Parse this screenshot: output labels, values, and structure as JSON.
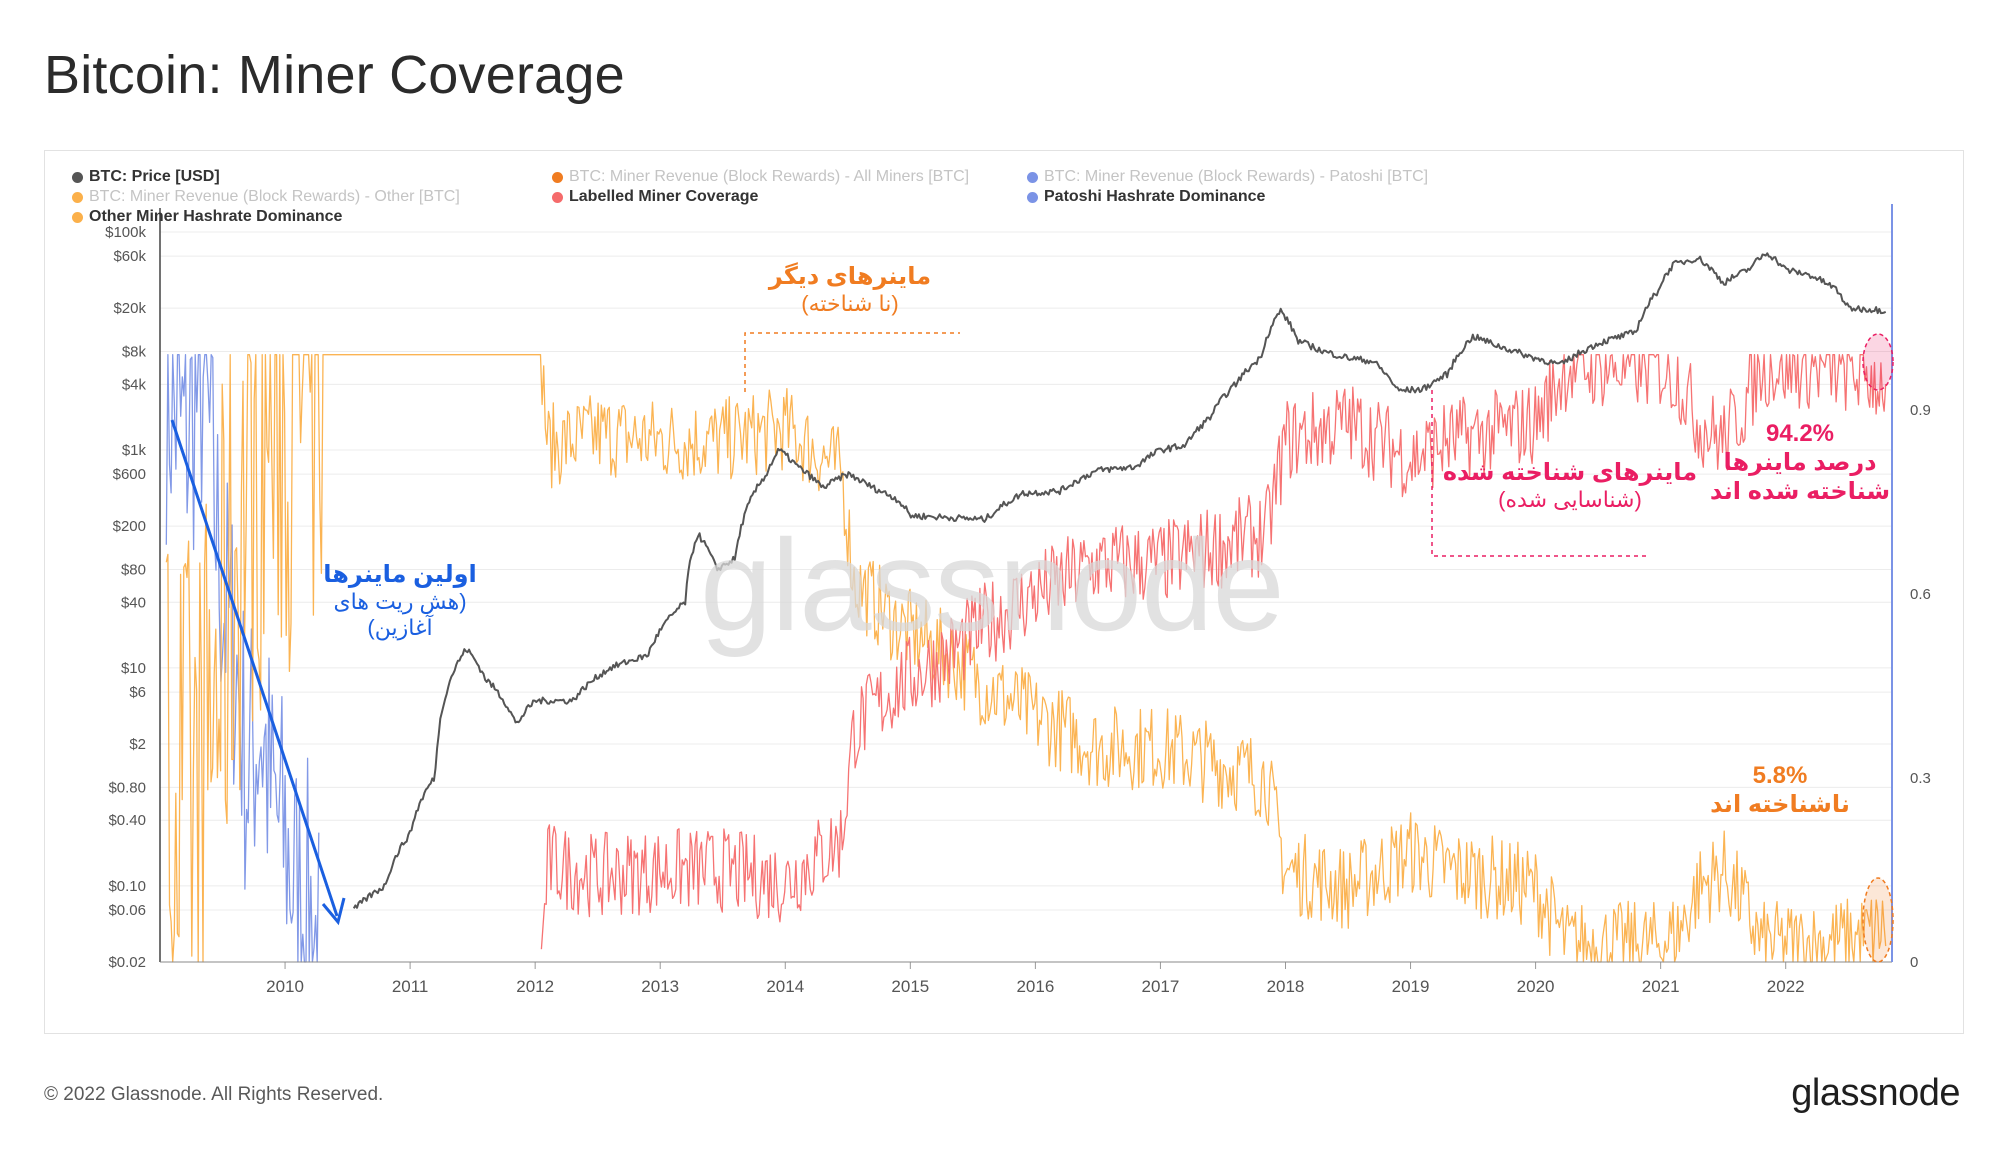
{
  "page": {
    "title": "Bitcoin: Miner Coverage",
    "copyright": "© 2022 Glassnode. All Rights Reserved.",
    "logo_text": "glassnode",
    "watermark_text": "glassnode"
  },
  "legend": [
    {
      "label": "BTC: Price [USD]",
      "color": "#555555",
      "active": true
    },
    {
      "label": "BTC: Miner Revenue (Block Rewards) - All Miners [BTC]",
      "color": "#f07c21",
      "active": false
    },
    {
      "label": "BTC: Miner Revenue (Block Rewards) - Patoshi [BTC]",
      "color": "#7b93e6",
      "active": false
    },
    {
      "label": "BTC: Miner Revenue (Block Rewards) - Other [BTC]",
      "color": "#fbb04a",
      "active": false
    },
    {
      "label": "Labelled Miner Coverage",
      "color": "#f56b6b",
      "active": true
    },
    {
      "label": "Patoshi Hashrate Dominance",
      "color": "#7b93e6",
      "active": true
    },
    {
      "label": "Other Miner Hashrate Dominance",
      "color": "#fbb04a",
      "active": true
    }
  ],
  "annotations": {
    "other_miners_title": "ماینرهای دیگر",
    "other_miners_sub": "(نا شناخته)",
    "early_miners_title": "اولین ماینرها",
    "early_miners_sub1": "(هش ریت های",
    "early_miners_sub2": "آغازین)",
    "labelled_title": "ماینرهای شناخته شده",
    "labelled_sub": "(شناسایی شده)",
    "labelled_pct": "94.2%",
    "labelled_pct_text1": "درصد ماینرها",
    "labelled_pct_text2": "شناخته شده اند",
    "unknown_pct": "5.8%",
    "unknown_pct_text": "ناشناخته اند",
    "colors": {
      "orange": "#f07c21",
      "blue": "#1a5fe0",
      "pink": "#ea1e63",
      "gray": "#888888"
    }
  },
  "chart_data": {
    "type": "line",
    "x_ticks": [
      "2010",
      "2011",
      "2012",
      "2013",
      "2014",
      "2015",
      "2016",
      "2017",
      "2018",
      "2019",
      "2020",
      "2021",
      "2022"
    ],
    "xlim": [
      2009.0,
      2022.85
    ],
    "y_left": {
      "scale": "log",
      "ticks": [
        "$100k",
        "$60k",
        "$20k",
        "$8k",
        "$4k",
        "$1k",
        "$600",
        "$200",
        "$80",
        "$40",
        "$10",
        "$6",
        "$2",
        "$0.80",
        "$0.40",
        "$0.10",
        "$0.06",
        "$0.02"
      ],
      "tick_values": [
        100000,
        60000,
        20000,
        8000,
        4000,
        1000,
        600,
        200,
        80,
        40,
        10,
        6,
        2,
        0.8,
        0.4,
        0.1,
        0.06,
        0.02
      ],
      "range": [
        0.02,
        100000
      ]
    },
    "y_right": {
      "ticks": [
        "0.9",
        "0.6",
        "0.3",
        "0"
      ],
      "tick_values": [
        0.9,
        0.6,
        0.3,
        0
      ],
      "range": [
        0,
        1.19
      ]
    },
    "series": [
      {
        "name": "BTC: Price [USD]",
        "axis": "left",
        "color": "#555555",
        "points": [
          [
            2010.55,
            0.06
          ],
          [
            2010.8,
            0.1
          ],
          [
            2011.0,
            0.3
          ],
          [
            2011.2,
            1.0
          ],
          [
            2011.45,
            15
          ],
          [
            2011.6,
            8
          ],
          [
            2011.85,
            3
          ],
          [
            2012.0,
            5
          ],
          [
            2012.3,
            5
          ],
          [
            2012.6,
            10
          ],
          [
            2012.9,
            13
          ],
          [
            2013.2,
            40
          ],
          [
            2013.3,
            170
          ],
          [
            2013.45,
            80
          ],
          [
            2013.6,
            100
          ],
          [
            2013.85,
            600
          ],
          [
            2013.95,
            1000
          ],
          [
            2014.1,
            700
          ],
          [
            2014.3,
            450
          ],
          [
            2014.5,
            600
          ],
          [
            2014.7,
            450
          ],
          [
            2014.9,
            350
          ],
          [
            2015.0,
            250
          ],
          [
            2015.3,
            240
          ],
          [
            2015.6,
            230
          ],
          [
            2015.9,
            400
          ],
          [
            2016.2,
            420
          ],
          [
            2016.5,
            650
          ],
          [
            2016.8,
            700
          ],
          [
            2017.0,
            1000
          ],
          [
            2017.2,
            1100
          ],
          [
            2017.4,
            2000
          ],
          [
            2017.6,
            4000
          ],
          [
            2017.8,
            7000
          ],
          [
            2017.96,
            19000
          ],
          [
            2018.1,
            10000
          ],
          [
            2018.3,
            8000
          ],
          [
            2018.5,
            7000
          ],
          [
            2018.7,
            6500
          ],
          [
            2018.9,
            3500
          ],
          [
            2019.1,
            3600
          ],
          [
            2019.3,
            5000
          ],
          [
            2019.5,
            11000
          ],
          [
            2019.7,
            9000
          ],
          [
            2019.95,
            7200
          ],
          [
            2020.2,
            6000
          ],
          [
            2020.5,
            9500
          ],
          [
            2020.8,
            12000
          ],
          [
            2020.97,
            28000
          ],
          [
            2021.1,
            50000
          ],
          [
            2021.3,
            58000
          ],
          [
            2021.5,
            34000
          ],
          [
            2021.7,
            45000
          ],
          [
            2021.85,
            65000
          ],
          [
            2022.0,
            45000
          ],
          [
            2022.2,
            40000
          ],
          [
            2022.4,
            30000
          ],
          [
            2022.5,
            20000
          ],
          [
            2022.7,
            19500
          ],
          [
            2022.8,
            19000
          ]
        ]
      },
      {
        "name": "Labelled Miner Coverage",
        "axis": "right",
        "color": "#f56b6b",
        "points": [
          [
            2012.05,
            0.0
          ],
          [
            2012.1,
            0.16
          ],
          [
            2012.5,
            0.14
          ],
          [
            2013.0,
            0.15
          ],
          [
            2013.5,
            0.15
          ],
          [
            2014.0,
            0.13
          ],
          [
            2014.45,
            0.2
          ],
          [
            2014.55,
            0.38
          ],
          [
            2014.9,
            0.45
          ],
          [
            2015.3,
            0.5
          ],
          [
            2015.6,
            0.55
          ],
          [
            2016.0,
            0.6
          ],
          [
            2016.5,
            0.65
          ],
          [
            2017.0,
            0.65
          ],
          [
            2017.5,
            0.68
          ],
          [
            2017.85,
            0.7
          ],
          [
            2018.0,
            0.85
          ],
          [
            2018.5,
            0.88
          ],
          [
            2019.0,
            0.82
          ],
          [
            2019.3,
            0.85
          ],
          [
            2019.6,
            0.86
          ],
          [
            2020.0,
            0.88
          ],
          [
            2020.25,
            0.97
          ],
          [
            2020.7,
            0.97
          ],
          [
            2021.0,
            0.97
          ],
          [
            2021.15,
            0.95
          ],
          [
            2021.3,
            0.88
          ],
          [
            2021.5,
            0.85
          ],
          [
            2021.65,
            0.9
          ],
          [
            2021.8,
            0.97
          ],
          [
            2022.2,
            0.97
          ],
          [
            2022.6,
            0.96
          ],
          [
            2022.8,
            0.942
          ]
        ]
      },
      {
        "name": "Other Miner Hashrate Dominance",
        "axis": "right",
        "color": "#fbb04a",
        "points": [
          [
            2009.05,
            0.3
          ],
          [
            2009.3,
            0.25
          ],
          [
            2009.5,
            0.5
          ],
          [
            2009.7,
            0.8
          ],
          [
            2009.9,
            0.9
          ],
          [
            2010.27,
            0.95
          ],
          [
            2010.27,
            0.99
          ],
          [
            2012.05,
            0.99
          ],
          [
            2012.1,
            0.84
          ],
          [
            2012.5,
            0.86
          ],
          [
            2013.0,
            0.85
          ],
          [
            2013.5,
            0.85
          ],
          [
            2014.0,
            0.87
          ],
          [
            2014.45,
            0.8
          ],
          [
            2014.55,
            0.62
          ],
          [
            2014.9,
            0.55
          ],
          [
            2015.3,
            0.5
          ],
          [
            2015.6,
            0.45
          ],
          [
            2016.0,
            0.4
          ],
          [
            2016.5,
            0.35
          ],
          [
            2017.0,
            0.35
          ],
          [
            2017.5,
            0.32
          ],
          [
            2017.85,
            0.3
          ],
          [
            2018.0,
            0.15
          ],
          [
            2018.5,
            0.12
          ],
          [
            2019.0,
            0.18
          ],
          [
            2019.3,
            0.15
          ],
          [
            2019.6,
            0.14
          ],
          [
            2020.0,
            0.12
          ],
          [
            2020.25,
            0.03
          ],
          [
            2020.7,
            0.03
          ],
          [
            2021.0,
            0.03
          ],
          [
            2021.15,
            0.05
          ],
          [
            2021.3,
            0.12
          ],
          [
            2021.5,
            0.15
          ],
          [
            2021.65,
            0.1
          ],
          [
            2021.8,
            0.03
          ],
          [
            2022.2,
            0.03
          ],
          [
            2022.6,
            0.04
          ],
          [
            2022.8,
            0.058
          ]
        ]
      },
      {
        "name": "Patoshi Hashrate Dominance",
        "axis": "right",
        "color": "#7b93e6",
        "points": [
          [
            2009.05,
            0.93
          ],
          [
            2009.2,
            0.85
          ],
          [
            2009.35,
            0.95
          ],
          [
            2009.5,
            0.6
          ],
          [
            2009.6,
            0.5
          ],
          [
            2009.7,
            0.3
          ],
          [
            2009.8,
            0.4
          ],
          [
            2009.9,
            0.25
          ],
          [
            2010.0,
            0.2
          ],
          [
            2010.1,
            0.1
          ],
          [
            2010.2,
            0.08
          ],
          [
            2010.27,
            0.0
          ]
        ]
      }
    ]
  }
}
